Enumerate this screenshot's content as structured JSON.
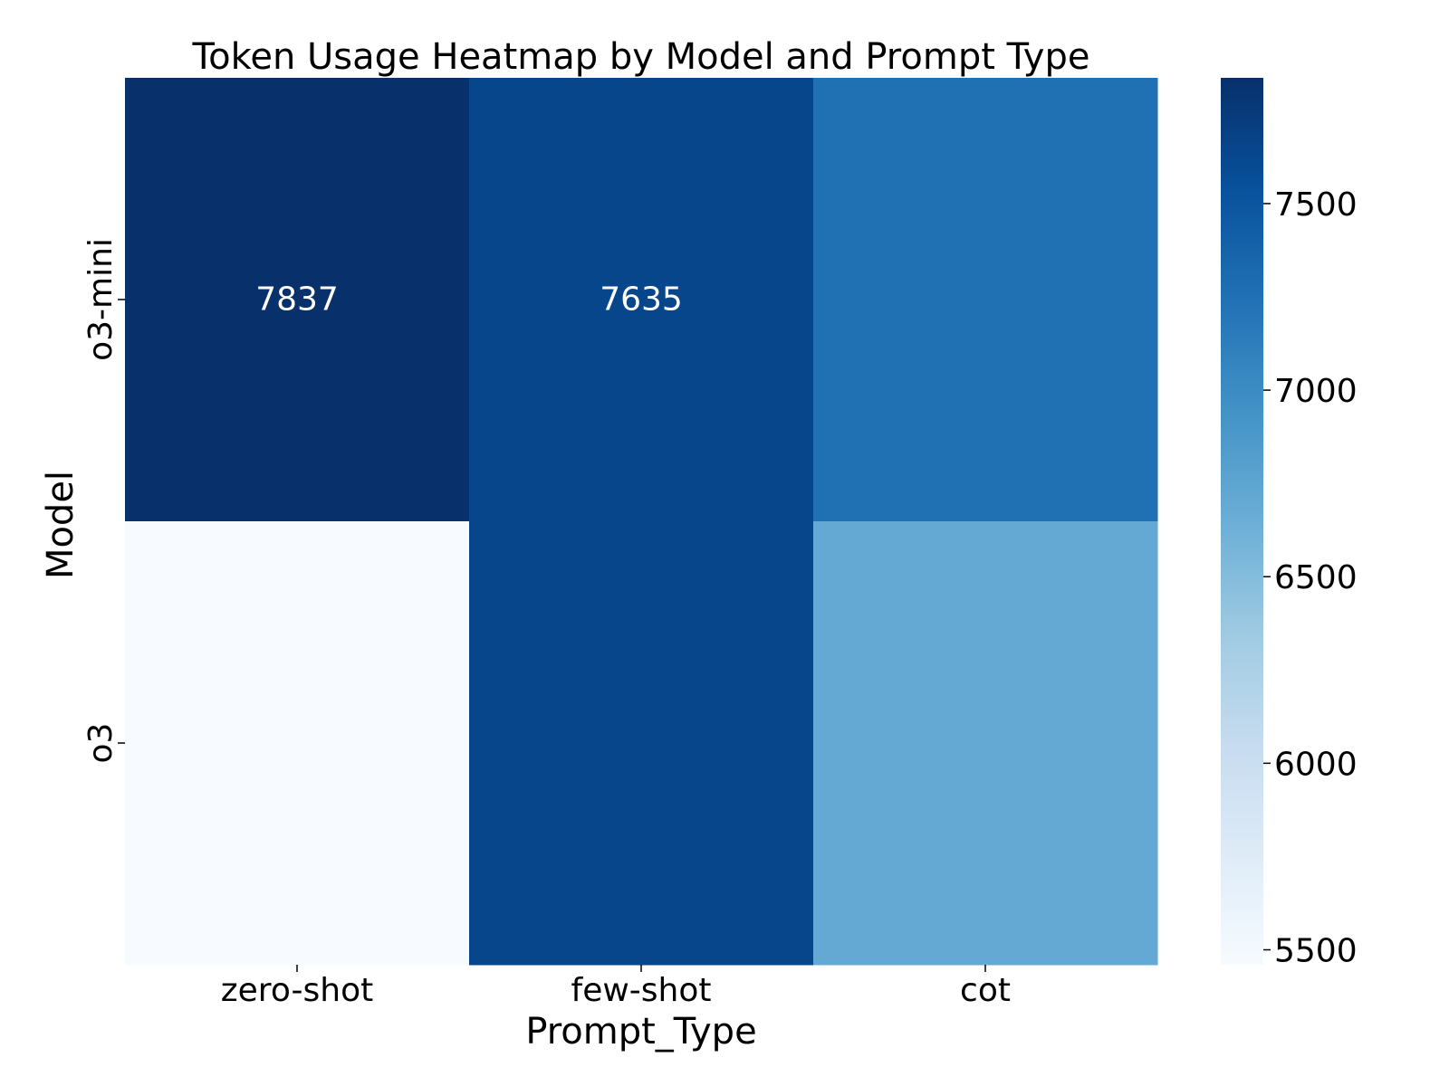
{
  "chart_data": {
    "type": "heatmap",
    "title": "Token Usage Heatmap by Model and Prompt Type",
    "xlabel": "Prompt_Type",
    "ylabel": "Model",
    "x_categories": [
      "zero-shot",
      "few-shot",
      "cot"
    ],
    "y_categories": [
      "o3-mini",
      "o3"
    ],
    "values": [
      [
        7837,
        7635,
        7250
      ],
      [
        5460,
        7640,
        6700
      ]
    ],
    "cell_labels": [
      [
        "7837",
        "7635",
        ""
      ],
      [
        "",
        "",
        ""
      ]
    ],
    "colormap": "Blues",
    "color_range": [
      5460,
      7837
    ],
    "colorbar_ticks": [
      5500,
      6000,
      6500,
      7000,
      7500
    ],
    "colorbar_tick_labels": [
      "5500",
      "6000",
      "6500",
      "7000",
      "7500"
    ]
  }
}
